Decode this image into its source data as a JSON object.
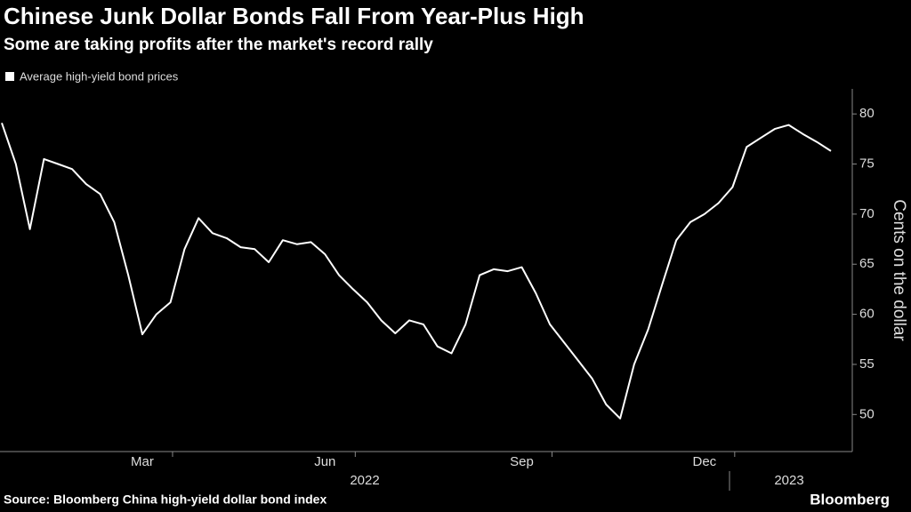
{
  "chart_data": {
    "type": "line",
    "title": "Chinese Junk Dollar Bonds Fall From Year-Plus High",
    "subtitle": "Some are taking profits after the market's record rally",
    "y_label": "Cents on the dollar",
    "source": "Source: Bloomberg China high-yield dollar bond index",
    "brand": "Bloomberg",
    "categories": [
      null,
      null,
      null,
      null,
      null,
      null,
      null,
      null,
      null,
      null,
      "Mar",
      null,
      null,
      null,
      null,
      null,
      null,
      null,
      null,
      null,
      null,
      null,
      null,
      "Jun",
      null,
      null,
      null,
      null,
      null,
      null,
      null,
      null,
      null,
      null,
      null,
      null,
      null,
      "Sep",
      null,
      null,
      null,
      null,
      null,
      null,
      null,
      null,
      null,
      null,
      null,
      null,
      "Dec",
      null,
      null,
      null,
      null,
      null,
      null,
      null,
      null,
      null
    ],
    "x_group_labels": [
      "2022",
      "2023"
    ],
    "series": [
      {
        "name": "Average high-yield bond prices",
        "color": "#ffffff",
        "values": [
          79.1,
          75,
          68.5,
          75.5,
          75,
          74.5,
          73,
          72,
          69.2,
          63.9,
          58,
          60,
          61.2,
          66.5,
          69.6,
          68.1,
          67.6,
          66.7,
          66.5,
          65.2,
          67.4,
          67,
          67.2,
          66,
          63.9,
          62.5,
          61.2,
          59.4,
          58.1,
          59.4,
          59,
          56.8,
          56.1,
          59,
          63.9,
          64.5,
          64.3,
          64.7,
          62.1,
          59,
          57.2,
          55.4,
          53.6,
          51,
          49.6,
          55,
          58.5,
          63,
          67.4,
          69.2,
          70,
          71.1,
          72.7,
          76.7,
          77.6,
          78.5,
          78.9,
          78,
          77.2,
          76.3
        ]
      }
    ],
    "ylim": [
      46.3,
      82.5
    ],
    "yticks": [
      50,
      55,
      60,
      65,
      70,
      75,
      80
    ]
  }
}
